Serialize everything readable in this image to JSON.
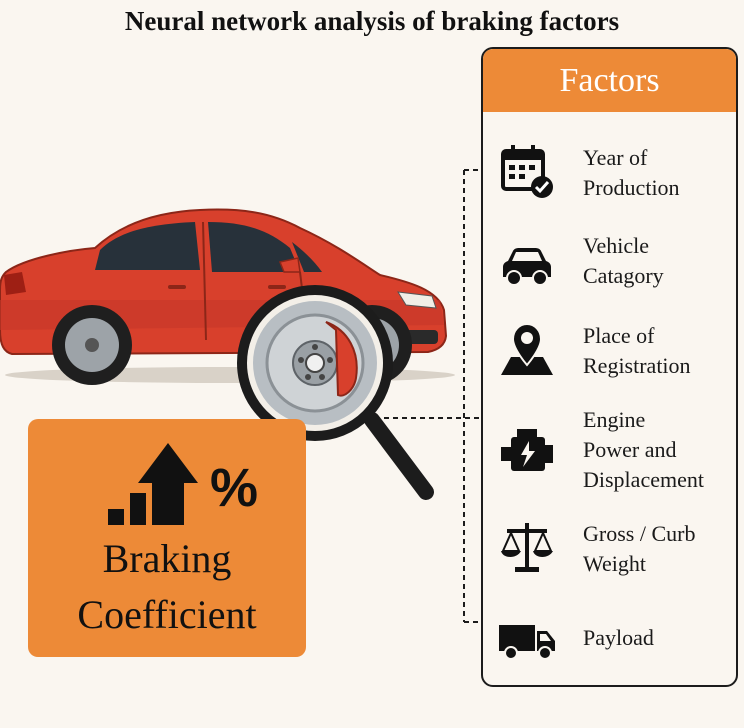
{
  "title": "Neural network analysis of braking factors",
  "factors": {
    "header": "Factors",
    "items": [
      {
        "icon": "calendar-check-icon",
        "label_lines": [
          "Year of",
          "Production"
        ]
      },
      {
        "icon": "car-icon",
        "label_lines": [
          "Vehicle",
          "Catagory"
        ]
      },
      {
        "icon": "map-pin-icon",
        "label_lines": [
          "Place of",
          "Registration"
        ]
      },
      {
        "icon": "engine-icon",
        "label_lines": [
          "Engine",
          "Power and",
          "Displacement"
        ]
      },
      {
        "icon": "balance-scale-icon",
        "label_lines": [
          "Gross / Curb",
          "Weight"
        ]
      },
      {
        "icon": "truck-icon",
        "label_lines": [
          "Payload"
        ]
      }
    ]
  },
  "braking": {
    "percent_symbol": "%",
    "label_lines": [
      "Braking",
      "Coefficient"
    ],
    "icon": "growth-bars-arrow-icon"
  },
  "illustration": {
    "car_icon": "red-sedan-illustration",
    "magnifier_icon": "magnifying-glass-brake-disc-icon"
  },
  "colors": {
    "accent": "#ed8a37",
    "car": "#d8402c",
    "background": "#faf6f0",
    "outline": "#1c1c1c"
  }
}
